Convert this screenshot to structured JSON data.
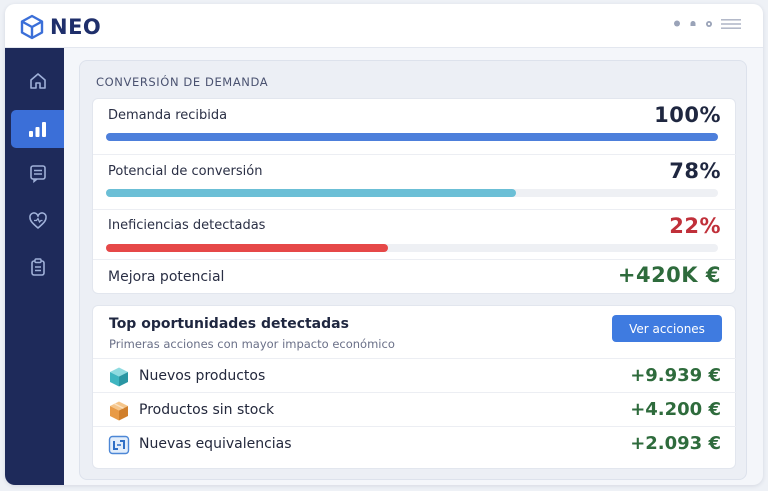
{
  "header": {
    "logo_text": "NEO",
    "icons": [
      "pin-icon",
      "bell-icon",
      "gear-icon",
      "menu-icon"
    ]
  },
  "sidebar": {
    "items": [
      {
        "icon": "home-icon",
        "active": false
      },
      {
        "icon": "chart-icon",
        "active": true
      },
      {
        "icon": "document-icon",
        "active": false
      },
      {
        "icon": "heart-icon",
        "active": false
      },
      {
        "icon": "clipboard-icon",
        "active": false
      }
    ]
  },
  "conversion": {
    "title": "CONVERSIÓN DE DEMANDA",
    "rows": [
      {
        "label": "Demanda recibida",
        "value": "100%",
        "fill": 1.0,
        "color": "#4d7fdb"
      },
      {
        "label": "Potencial de conversión",
        "value": "78%",
        "fill": 0.67,
        "color": "#6bbfd6"
      },
      {
        "label": "Ineficiencias detectadas",
        "value": "22%",
        "fill": 0.46,
        "color": "#e64848"
      }
    ],
    "improvement": {
      "label": "Mejora potencial",
      "value": "+420K €"
    }
  },
  "opportunities": {
    "title": "Top oportunidades detectadas",
    "subtitle": "Primeras acciones con mayor impacto económico",
    "button_label": "Ver acciones",
    "items": [
      {
        "icon": "cube-teal-icon",
        "label": "Nuevos productos",
        "value": "+9.939 €"
      },
      {
        "icon": "box-orange-icon",
        "label": "Productos sin stock",
        "value": "+4.200 €"
      },
      {
        "icon": "equivalence-icon",
        "label": "Nuevas equivalencias",
        "value": "+2.093 €"
      }
    ]
  },
  "colors": {
    "primary_dark": "#1e2a5a",
    "accent_blue": "#3f7be0",
    "value_dark": "#1f2740",
    "value_red": "#c0303a",
    "value_green": "#2e6b3c"
  }
}
